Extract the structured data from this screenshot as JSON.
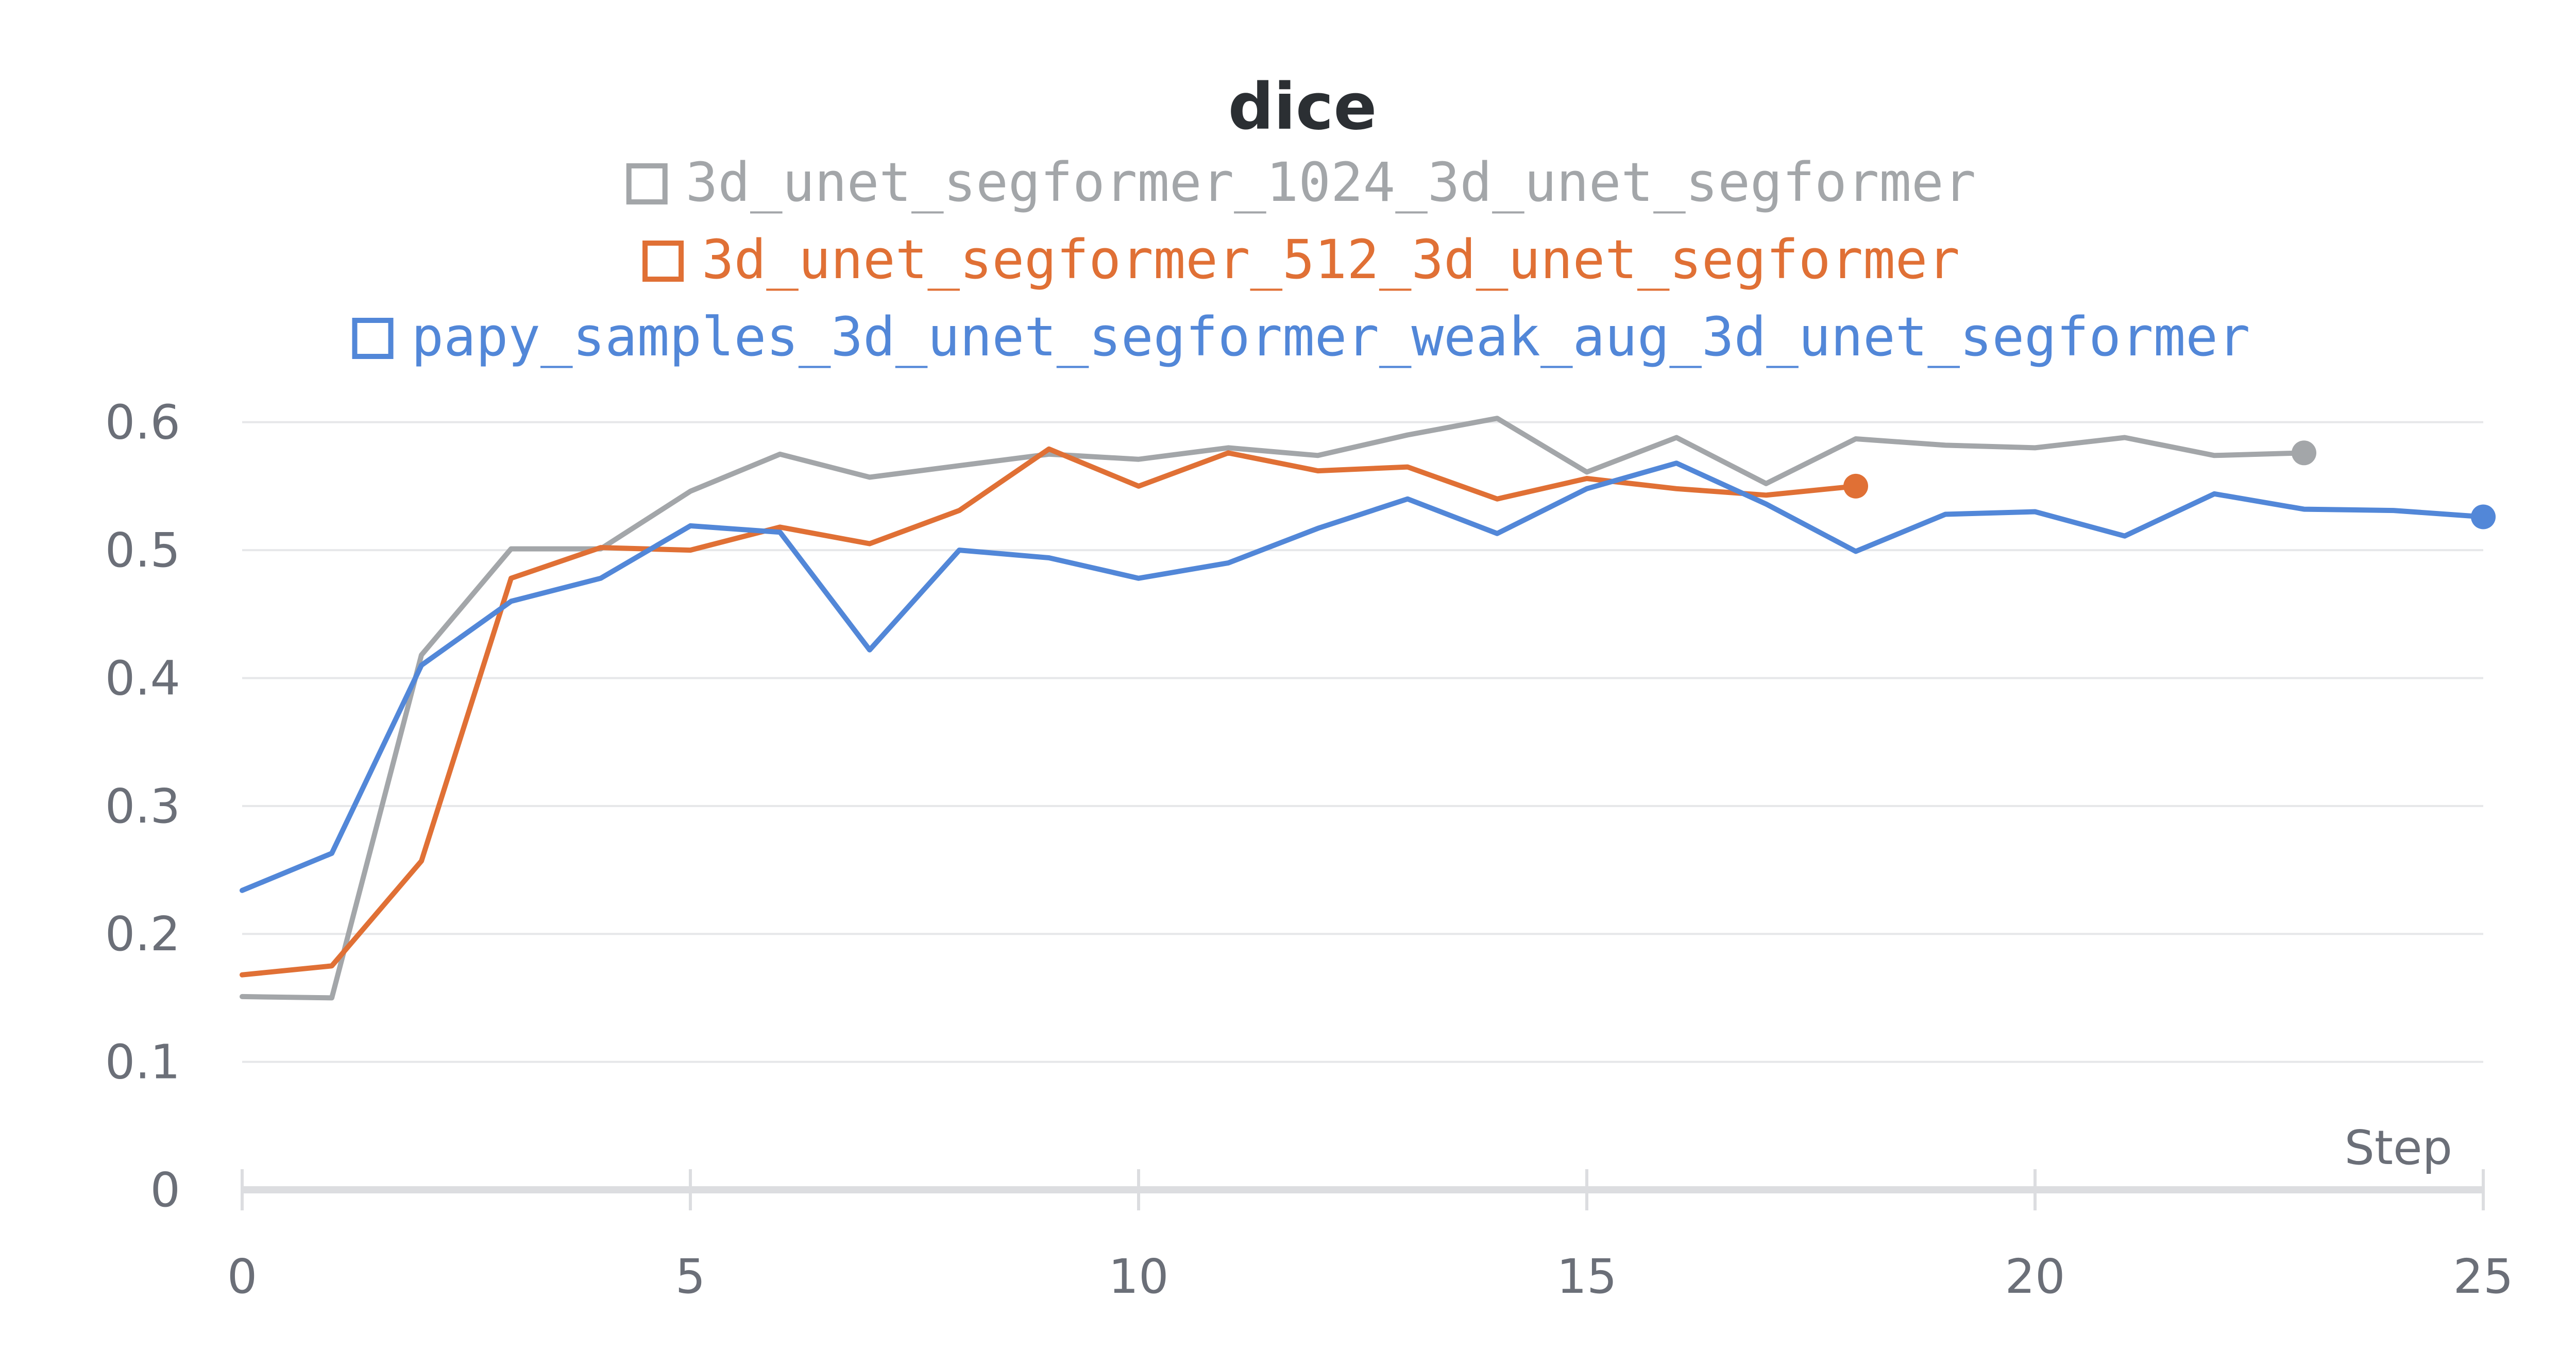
{
  "chart_data": {
    "type": "line",
    "title": "dice",
    "xlabel": "Step",
    "ylabel": "",
    "xlim": [
      0,
      25
    ],
    "ylim": [
      0,
      0.62
    ],
    "x_ticks": [
      0,
      5,
      10,
      15,
      20,
      25
    ],
    "y_ticks": [
      0,
      0.1,
      0.2,
      0.3,
      0.4,
      0.5,
      0.6
    ],
    "x_tick_labels": [
      "0",
      "5",
      "10",
      "15",
      "20",
      "25"
    ],
    "y_tick_labels": [
      "0",
      "0.1",
      "0.2",
      "0.3",
      "0.4",
      "0.5",
      "0.6"
    ],
    "grid": true,
    "legend_position": "top",
    "series": [
      {
        "name": "3d_unet_segformer_1024_3d_unet_segformer",
        "color": "#a3a6a9",
        "x": [
          0,
          1,
          2,
          3,
          4,
          5,
          6,
          7,
          8,
          9,
          10,
          11,
          12,
          13,
          14,
          15,
          16,
          17,
          18,
          19,
          20,
          21,
          22,
          23
        ],
        "values": [
          0.151,
          0.15,
          0.418,
          0.501,
          0.501,
          0.546,
          0.575,
          0.557,
          0.566,
          0.575,
          0.571,
          0.58,
          0.574,
          0.59,
          0.603,
          0.561,
          0.588,
          0.552,
          0.587,
          0.582,
          0.58,
          0.588,
          0.574,
          0.576
        ]
      },
      {
        "name": "3d_unet_segformer_512_3d_unet_segformer",
        "color": "#e07035",
        "x": [
          0,
          1,
          2,
          3,
          4,
          5,
          6,
          7,
          8,
          9,
          10,
          11,
          12,
          13,
          14,
          15,
          16,
          17,
          18
        ],
        "values": [
          0.168,
          0.175,
          0.257,
          0.478,
          0.502,
          0.5,
          0.518,
          0.505,
          0.531,
          0.579,
          0.55,
          0.576,
          0.562,
          0.565,
          0.54,
          0.556,
          0.548,
          0.543,
          0.55
        ]
      },
      {
        "name": "papy_samples_3d_unet_segformer_weak_aug_3d_unet_segformer",
        "color": "#5287d8",
        "x": [
          0,
          1,
          2,
          3,
          4,
          5,
          6,
          7,
          8,
          9,
          10,
          11,
          12,
          13,
          14,
          15,
          16,
          17,
          18,
          19,
          20,
          21,
          22,
          23,
          24,
          25
        ],
        "values": [
          0.234,
          0.263,
          0.41,
          0.46,
          0.478,
          0.519,
          0.514,
          0.422,
          0.5,
          0.494,
          0.478,
          0.49,
          0.517,
          0.54,
          0.513,
          0.548,
          0.568,
          0.536,
          0.499,
          0.528,
          0.53,
          0.511,
          0.544,
          0.532,
          0.531,
          0.526
        ]
      }
    ]
  }
}
